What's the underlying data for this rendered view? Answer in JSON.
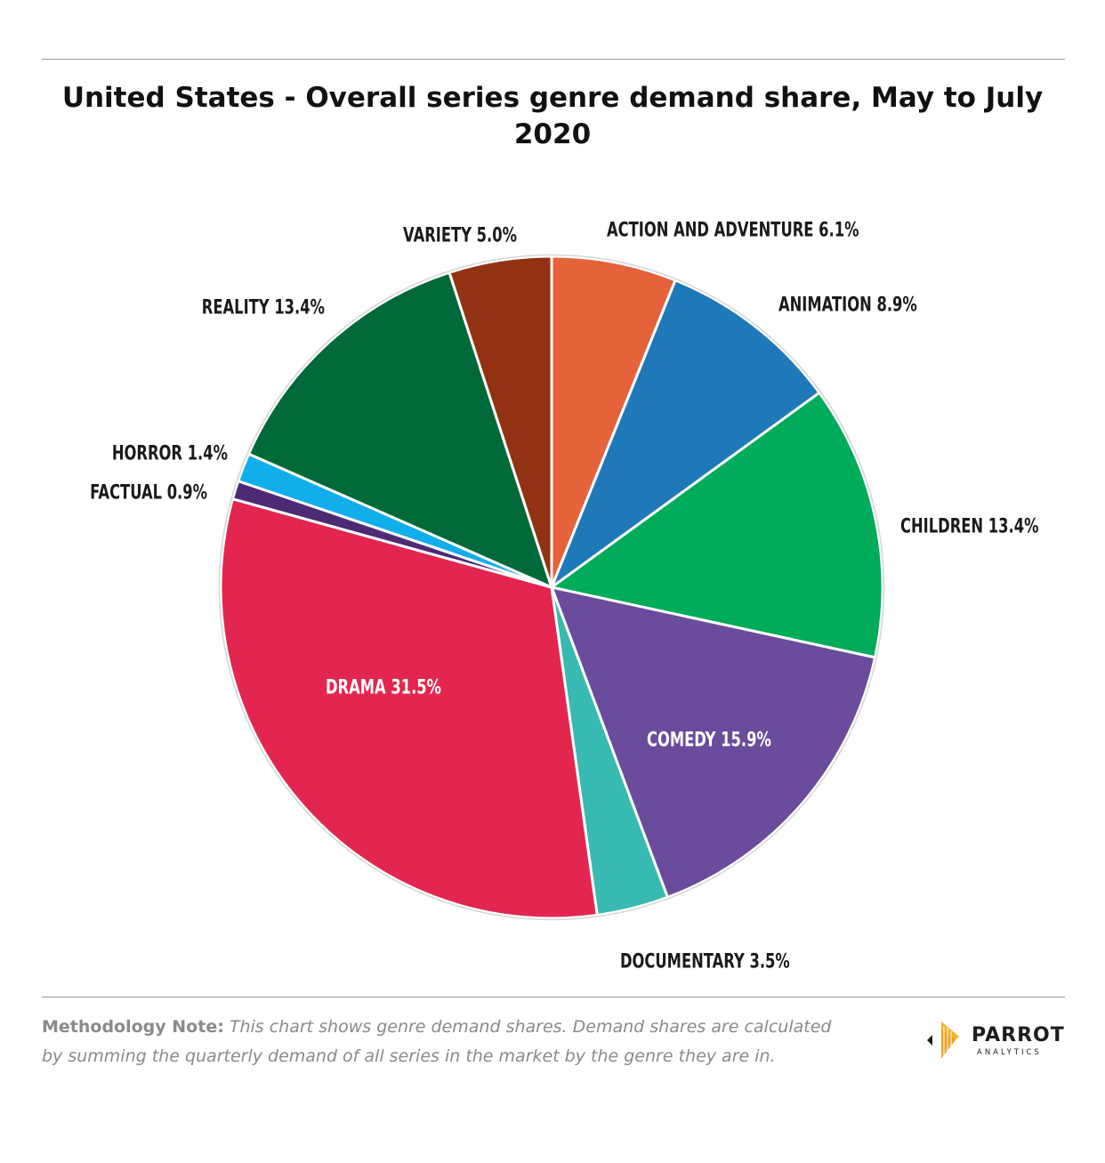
{
  "title": "United States - Overall series genre demand share, May to July 2020",
  "chart_data": {
    "type": "pie",
    "start_angle_deg": 0,
    "direction": "clockwise",
    "categories": [
      "ACTION AND ADVENTURE",
      "ANIMATION",
      "CHILDREN",
      "COMEDY",
      "DOCUMENTARY",
      "DRAMA",
      "FACTUAL",
      "HORROR",
      "REALITY",
      "VARIETY"
    ],
    "values": [
      6.1,
      8.9,
      13.4,
      15.9,
      3.5,
      31.5,
      0.9,
      1.4,
      13.4,
      5.0
    ],
    "labels": [
      "ACTION AND ADVENTURE 6.1%",
      "ANIMATION 8.9%",
      "CHILDREN 13.4%",
      "COMEDY 15.9%",
      "DOCUMENTARY 3.5%",
      "DRAMA 31.5%",
      "FACTUAL 0.9%",
      "HORROR 1.4%",
      "REALITY 13.4%",
      "VARIETY 5.0%"
    ],
    "colors": [
      "#e4633a",
      "#1f79b8",
      "#00ab5a",
      "#6b4b9b",
      "#38b9b1",
      "#e3264f",
      "#4c2a74",
      "#11aeeb",
      "#00693a",
      "#923213"
    ],
    "label_colors": [
      "#1a1a1a",
      "#1a1a1a",
      "#1a1a1a",
      "#ffffff",
      "#1a1a1a",
      "#ffffff",
      "#1a1a1a",
      "#1a1a1a",
      "#1a1a1a",
      "#1a1a1a"
    ],
    "unit": "%"
  },
  "footer": {
    "note_lead": "Methodology Note:",
    "note_body": "This chart shows genre demand shares. Demand shares are calculated by summing the quarterly demand of all series in the market by the genre they are in.",
    "brand_name": "PARROT",
    "brand_sub": "ANALYTICS"
  }
}
